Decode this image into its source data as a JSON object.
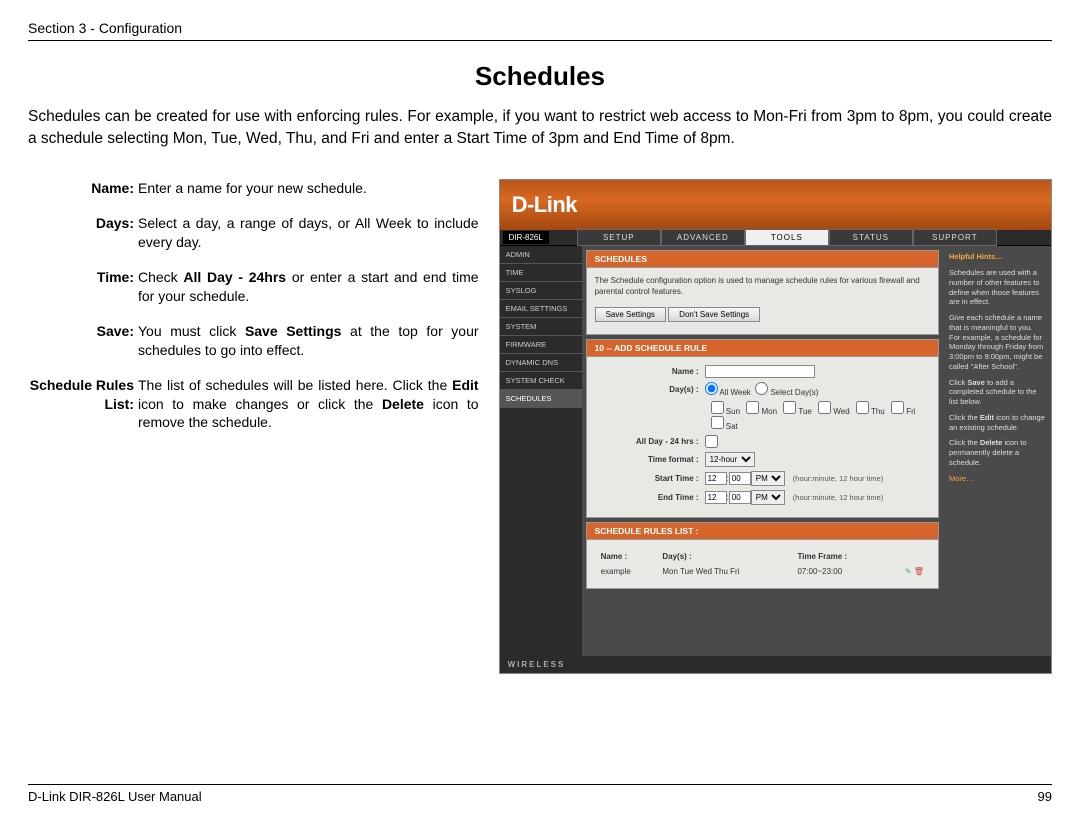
{
  "header": {
    "section": "Section 3 - Configuration"
  },
  "title": "Schedules",
  "intro": "Schedules can be created for use with enforcing rules. For example, if you want to restrict web access to Mon-Fri from 3pm to 8pm, you could create a schedule selecting Mon, Tue, Wed, Thu, and Fri and enter a Start Time of 3pm and End Time of 8pm.",
  "defs": [
    {
      "term": "Name:",
      "desc": "Enter a name for your new schedule."
    },
    {
      "term": "Days:",
      "desc": "Select a day, a range of days, or All Week to include every day."
    },
    {
      "term": "Time:",
      "desc_html": "Check <b>All Day - 24hrs</b> or enter a start and end time for your schedule."
    },
    {
      "term": "Save:",
      "desc_html": "You must click <b>Save Settings</b> at the top for your schedules to go into effect."
    },
    {
      "term": "Schedule Rules List:",
      "desc_html": "The list of schedules will be listed here. Click the <b>Edit</b> icon to make changes or click the <b>Delete</b> icon to remove the schedule."
    }
  ],
  "router": {
    "logo": "D-Link",
    "model": "DIR-826L",
    "tabs": [
      "SETUP",
      "ADVANCED",
      "TOOLS",
      "STATUS",
      "SUPPORT"
    ],
    "active_tab": 2,
    "sidebar": [
      "ADMIN",
      "TIME",
      "SYSLOG",
      "EMAIL SETTINGS",
      "SYSTEM",
      "FIRMWARE",
      "DYNAMIC DNS",
      "SYSTEM CHECK",
      "SCHEDULES"
    ],
    "sidebar_active": 8,
    "schedules_header": "SCHEDULES",
    "schedules_desc": "The Schedule configuration option is used to manage schedule rules for various firewall and parental control features.",
    "save_btn": "Save Settings",
    "dont_save_btn": "Don't Save Settings",
    "add_header": "10 -- ADD SCHEDULE RULE",
    "labels": {
      "name": "Name :",
      "days": "Day(s) :",
      "all_week": "All Week",
      "select_days": "Select Day(s)",
      "day_opts": [
        "Sun",
        "Mon",
        "Tue",
        "Wed",
        "Thu",
        "Fri",
        "Sat"
      ],
      "allday": "All Day - 24 hrs :",
      "timefmt": "Time format :",
      "timefmt_val": "12-hour",
      "start": "Start Time :",
      "end": "End Time :",
      "hint": "(hour:minute, 12 hour time)",
      "start_h": "12",
      "start_m": "00",
      "start_ap": "PM",
      "end_h": "12",
      "end_m": "00",
      "end_ap": "PM"
    },
    "rules_header": "SCHEDULE RULES LIST :",
    "rules_cols": [
      "Name :",
      "Day(s) :",
      "Time Frame :"
    ],
    "rules": [
      {
        "name": "example",
        "days": "Mon Tue Wed Thu Fri",
        "time": "07:00~23:00"
      }
    ],
    "help": {
      "title": "Helpful Hints…",
      "p1": "Schedules are used with a number of other features to define when those features are in effect.",
      "p2": "Give each schedule a name that is meaningful to you. For example, a schedule for Monday through Friday from 3:00pm to 9:00pm, might be called \"After School\".",
      "p3_html": "Click <b>Save</b> to add a completed schedule to the list below.",
      "p4_html": "Click the <b>Edit</b> icon to change an existing schedule.",
      "p5_html": "Click the <b>Delete</b> icon to permanently delete a schedule.",
      "more": "More…"
    },
    "footer": "WIRELESS"
  },
  "footer": {
    "manual": "D-Link DIR-826L User Manual",
    "page": "99"
  }
}
